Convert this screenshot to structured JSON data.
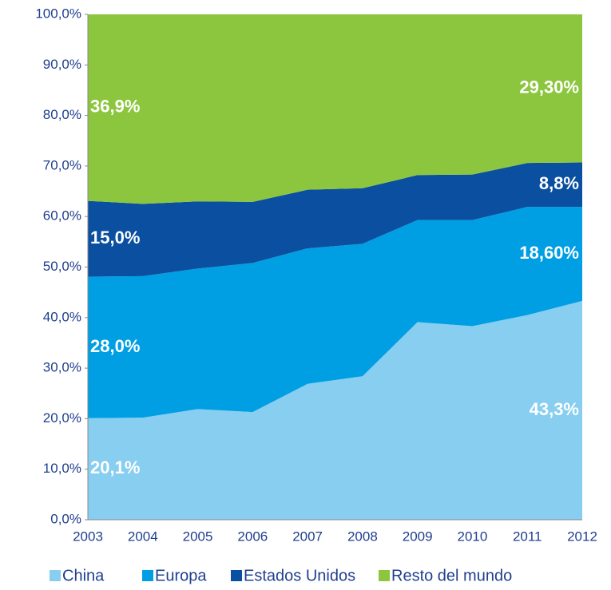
{
  "chart_data": {
    "type": "stacked_area",
    "categories": [
      "2003",
      "2004",
      "2005",
      "2006",
      "2007",
      "2008",
      "2009",
      "2010",
      "2011",
      "2012"
    ],
    "series": [
      {
        "name": "China",
        "color": "#87cef0",
        "values": [
          20.1,
          20.2,
          21.9,
          21.3,
          26.9,
          28.4,
          39.1,
          38.3,
          40.5,
          43.3
        ],
        "value_labels": [
          "20,1%",
          null,
          null,
          null,
          null,
          null,
          null,
          null,
          null,
          "43,3%"
        ]
      },
      {
        "name": "Europa",
        "color": "#009fe3",
        "values": [
          28.0,
          28.0,
          27.8,
          29.5,
          26.8,
          26.2,
          20.2,
          21.0,
          21.4,
          18.6
        ],
        "value_labels": [
          "28,0%",
          null,
          null,
          null,
          null,
          null,
          null,
          null,
          null,
          "18,60%"
        ]
      },
      {
        "name": "Estados Unidos",
        "color": "#0a4fa0",
        "values": [
          15.0,
          14.3,
          13.3,
          12.1,
          11.6,
          11.0,
          8.9,
          9.0,
          8.7,
          8.8
        ],
        "value_labels": [
          "15,0%",
          null,
          null,
          null,
          null,
          null,
          null,
          null,
          null,
          "8,8%"
        ]
      },
      {
        "name": "Resto del mundo",
        "color": "#8cc63f",
        "values": [
          36.9,
          37.5,
          37.0,
          37.1,
          34.7,
          34.4,
          31.8,
          31.7,
          29.4,
          29.3
        ],
        "value_labels": [
          "36,9%",
          null,
          null,
          null,
          null,
          null,
          null,
          null,
          null,
          "29,30%"
        ]
      }
    ],
    "ylim": [
      0,
      100
    ],
    "yticks": [
      {
        "value": 0,
        "label": "0,0%"
      },
      {
        "value": 10,
        "label": "10,0%"
      },
      {
        "value": 20,
        "label": "20,0%"
      },
      {
        "value": 30,
        "label": "30,0%"
      },
      {
        "value": 40,
        "label": "40,0%"
      },
      {
        "value": 50,
        "label": "50,0%"
      },
      {
        "value": 60,
        "label": "60,0%"
      },
      {
        "value": 70,
        "label": "70,0%"
      },
      {
        "value": 80,
        "label": "80,0%"
      },
      {
        "value": 90,
        "label": "90,0%"
      },
      {
        "value": 100,
        "label": "100,0%"
      }
    ],
    "legend": "bottom"
  }
}
